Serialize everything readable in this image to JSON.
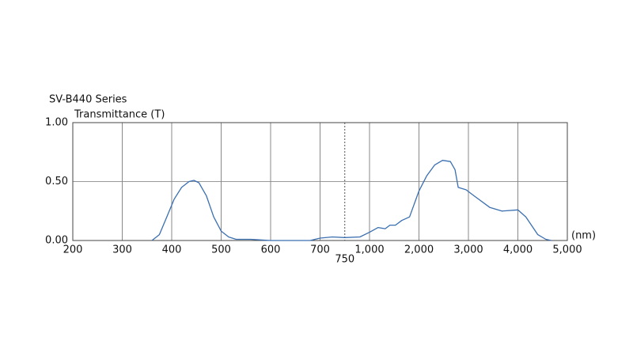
{
  "chart_data": {
    "type": "line",
    "title": "SV-B440 Series",
    "y_label": "Transmittance (T)",
    "x_unit": "(nm)",
    "color": "#3a6fb0",
    "x": [
      360,
      375,
      390,
      405,
      420,
      435,
      445,
      455,
      470,
      485,
      500,
      515,
      530,
      560,
      580,
      600,
      680,
      700,
      725,
      750,
      903,
      1000,
      1175,
      1317,
      1413,
      1524,
      1651,
      1810,
      2000,
      2159,
      2317,
      2476,
      2635,
      2730,
      2794,
      2952,
      3111,
      3435,
      3677,
      4000,
      4161,
      4403,
      4565,
      4677
    ],
    "values": [
      0,
      0.05,
      0.2,
      0.35,
      0.45,
      0.5,
      0.51,
      0.49,
      0.38,
      0.2,
      0.08,
      0.03,
      0.01,
      0.01,
      0.005,
      0,
      0,
      0.02,
      0.03,
      0.025,
      0.03,
      0.07,
      0.11,
      0.1,
      0.13,
      0.13,
      0.17,
      0.2,
      0.42,
      0.55,
      0.64,
      0.68,
      0.67,
      0.6,
      0.45,
      0.43,
      0.38,
      0.28,
      0.25,
      0.26,
      0.2,
      0.05,
      0.01,
      0
    ],
    "xlim": [
      200,
      5000
    ],
    "ylim": [
      0,
      1
    ],
    "xticks": [
      200,
      300,
      400,
      500,
      600,
      700,
      {
        "value": 750,
        "label": "750",
        "style": "dashed"
      },
      {
        "value": 1000,
        "label": "1,000"
      },
      {
        "value": 2000,
        "label": "2,000"
      },
      {
        "value": 3000,
        "label": "3,000"
      },
      {
        "value": 4000,
        "label": "4,000"
      },
      {
        "value": 5000,
        "label": "5,000"
      }
    ],
    "yticks": [
      {
        "value": 0,
        "label": "0.00"
      },
      {
        "value": 0.5,
        "label": "0.50"
      },
      {
        "value": 1,
        "label": "1.00"
      }
    ],
    "grid": true
  }
}
